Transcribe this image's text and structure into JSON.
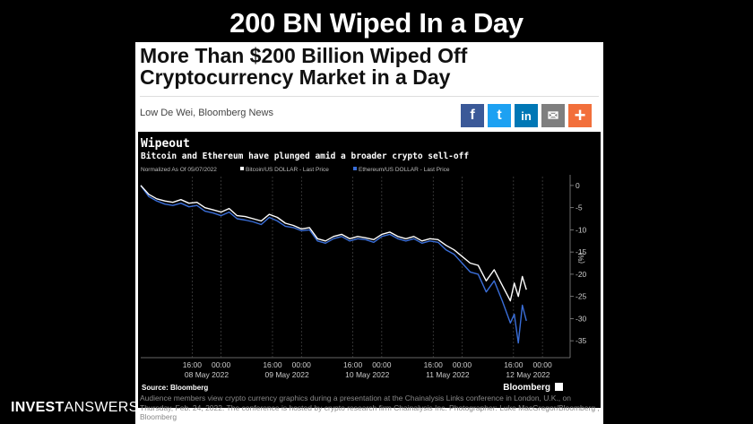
{
  "slide_title": "200 BN Wiped In a Day",
  "article": {
    "headline_line1": "More Than $200 Billion Wiped Off",
    "headline_line2": "Cryptocurrency Market in a Day",
    "byline": "Low De Wei, Bloomberg News",
    "share_buttons": [
      {
        "icon": "facebook-icon",
        "glyph": "f",
        "color": "#3b5998"
      },
      {
        "icon": "twitter-icon",
        "glyph": "t",
        "color": "#1da1f2"
      },
      {
        "icon": "linkedin-icon",
        "glyph": "in",
        "color": "#0077b5"
      },
      {
        "icon": "email-icon",
        "glyph": "✉",
        "color": "#7f7f7f"
      },
      {
        "icon": "plus-icon",
        "glyph": "+",
        "color": "#f26f3b"
      }
    ],
    "caption": "Audience members view crypto currency graphics during a presentation at the Chainalysis Links conference in London, U.K., on Thursday, Feb. 24, 2022. The conference is hosted by crypto research firm Chainalysis Inc. Photographer: Luke MacGregor/Bloomberg , Bloomberg"
  },
  "brand": {
    "bold": "INVEST",
    "light": "ANSWERS"
  },
  "chart_data": {
    "type": "line",
    "title": "Wipeout",
    "subtitle": "Bitcoin and Ethereum have plunged amid a broader crypto sell-off",
    "normalized_note": "Normalized As Of 05/07/2022",
    "legend": [
      "Bitcoin/US DOLLAR - Last Price",
      "Ethereum/US DOLLAR - Last Price"
    ],
    "source": "Source: Bloomberg",
    "watermark": "Bloomberg",
    "y_ticks": [
      "0",
      "-5",
      "-10",
      "-15",
      "-20",
      "-25",
      "-30",
      "-35"
    ],
    "y_tick_values": [
      0,
      -5,
      -10,
      -15,
      -20,
      -25,
      -30,
      -35
    ],
    "ylim": [
      -38,
      2
    ],
    "x_time_labels": [
      "16:00",
      "00:00",
      "16:00",
      "00:00",
      "16:00",
      "00:00",
      "16:00",
      "00:00",
      "16:00",
      "00:00"
    ],
    "x_time_positions": [
      0.64,
      1.0,
      1.64,
      2.0,
      2.64,
      3.0,
      3.64,
      4.0,
      4.64,
      5.0
    ],
    "x_dates": [
      "08 May 2022",
      "09 May 2022",
      "10 May 2022",
      "11 May 2022",
      "12 May 2022"
    ],
    "x_date_positions": [
      0.82,
      1.82,
      2.82,
      3.82,
      4.82
    ],
    "xlim": [
      0,
      5.3
    ],
    "series": [
      {
        "name": "Bitcoin/US DOLLAR - Last Price",
        "color": "#ffffff",
        "x": [
          0,
          0.1,
          0.2,
          0.3,
          0.4,
          0.5,
          0.6,
          0.7,
          0.8,
          0.9,
          1.0,
          1.1,
          1.2,
          1.3,
          1.4,
          1.5,
          1.6,
          1.7,
          1.8,
          1.9,
          2.0,
          2.1,
          2.2,
          2.3,
          2.4,
          2.5,
          2.6,
          2.7,
          2.8,
          2.9,
          3.0,
          3.1,
          3.2,
          3.3,
          3.4,
          3.5,
          3.6,
          3.7,
          3.8,
          3.9,
          4.0,
          4.1,
          4.2,
          4.3,
          4.4,
          4.5,
          4.6,
          4.65,
          4.7,
          4.75,
          4.8
        ],
        "y": [
          0,
          -2,
          -3,
          -3.5,
          -3.8,
          -3.2,
          -4,
          -3.8,
          -5,
          -5.5,
          -6,
          -5.2,
          -6.8,
          -7,
          -7.5,
          -8,
          -6.5,
          -7.2,
          -8.5,
          -9,
          -9.8,
          -9.5,
          -12,
          -12.5,
          -11.5,
          -11,
          -12,
          -11.5,
          -11.8,
          -12.2,
          -11,
          -10.5,
          -11.5,
          -12,
          -11.5,
          -12.5,
          -12,
          -12.2,
          -13.5,
          -14.5,
          -16,
          -17.5,
          -18,
          -21.5,
          -19,
          -22.5,
          -26,
          -22,
          -25,
          -20.5,
          -23.5
        ]
      },
      {
        "name": "Ethereum/US DOLLAR - Last Price",
        "color": "#3a6ed8",
        "x": [
          0,
          0.1,
          0.2,
          0.3,
          0.4,
          0.5,
          0.6,
          0.7,
          0.8,
          0.9,
          1.0,
          1.1,
          1.2,
          1.3,
          1.4,
          1.5,
          1.6,
          1.7,
          1.8,
          1.9,
          2.0,
          2.1,
          2.2,
          2.3,
          2.4,
          2.5,
          2.6,
          2.7,
          2.8,
          2.9,
          3.0,
          3.1,
          3.2,
          3.3,
          3.4,
          3.5,
          3.6,
          3.7,
          3.8,
          3.9,
          4.0,
          4.1,
          4.2,
          4.3,
          4.4,
          4.5,
          4.6,
          4.65,
          4.7,
          4.75,
          4.8
        ],
        "y": [
          0,
          -2.5,
          -3.5,
          -4.2,
          -4.5,
          -4,
          -4.8,
          -4.5,
          -5.8,
          -6.2,
          -6.8,
          -6,
          -7.5,
          -7.8,
          -8.2,
          -8.8,
          -7.2,
          -8,
          -9.2,
          -9.5,
          -10.2,
          -10,
          -12.5,
          -13,
          -12,
          -11.5,
          -12.5,
          -12,
          -12.2,
          -12.8,
          -11.5,
          -11,
          -12,
          -12.5,
          -12,
          -13,
          -12.5,
          -12.8,
          -14.5,
          -15.5,
          -17.5,
          -19.5,
          -20,
          -24,
          -21.5,
          -26,
          -31,
          -29,
          -35.5,
          -27,
          -30.5
        ]
      }
    ]
  }
}
